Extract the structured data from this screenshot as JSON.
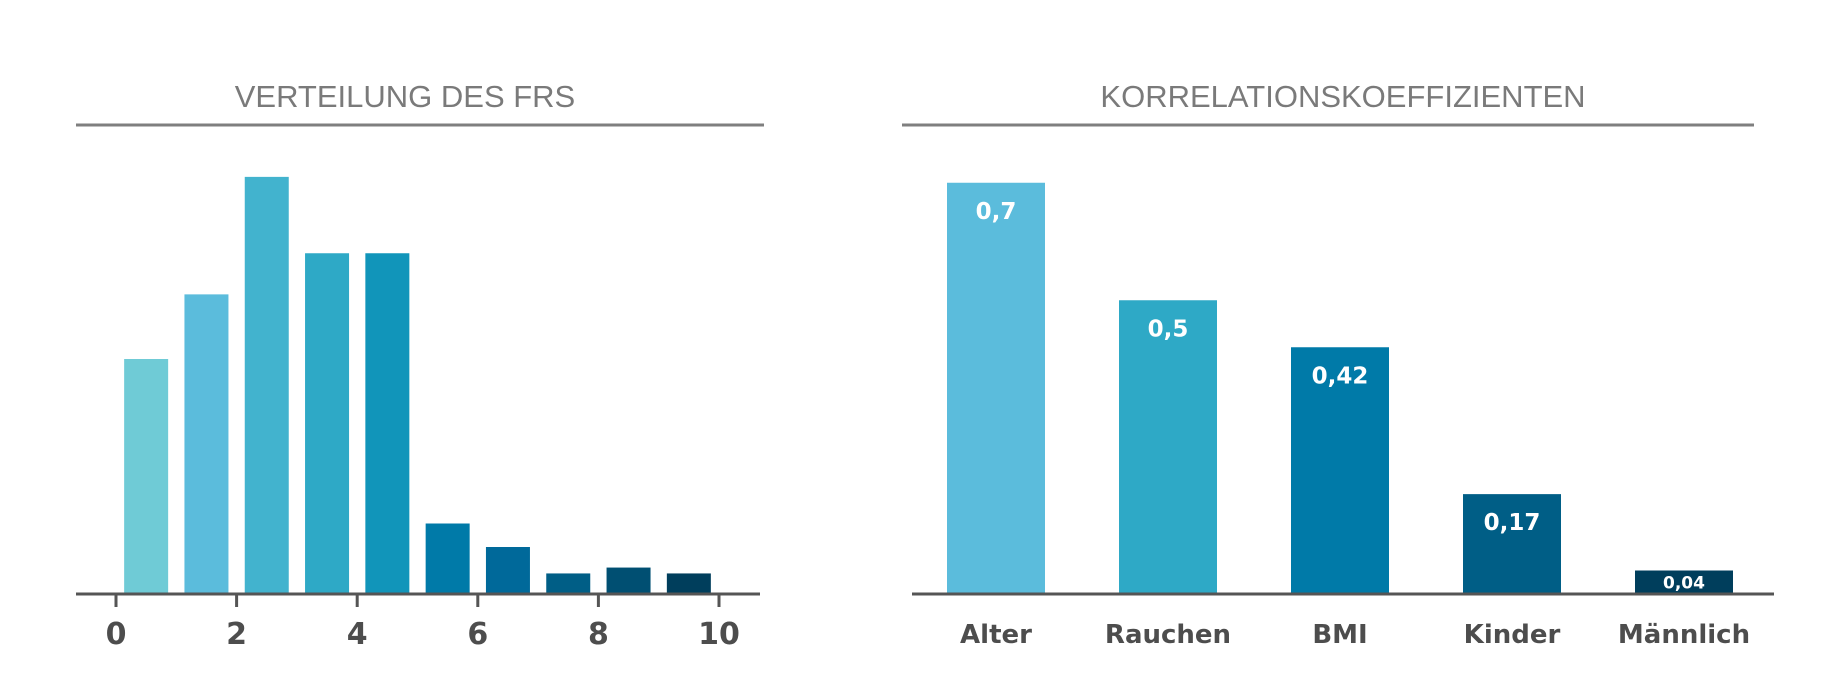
{
  "chart_data": [
    {
      "type": "bar",
      "title": "VERTEILUNG DES FRS",
      "x": [
        0,
        1,
        2,
        3,
        4,
        5,
        6,
        7,
        8,
        9
      ],
      "values": [
        40,
        51,
        71,
        58,
        58,
        12,
        8,
        3.5,
        4.5,
        3.5
      ],
      "xticks": [
        "0",
        "2",
        "4",
        "6",
        "8",
        "10"
      ],
      "colors": [
        "#6fcbd6",
        "#5bbcdc",
        "#42b3ce",
        "#2ea9c6",
        "#1195ba",
        "#007aa8",
        "#00699a",
        "#005e86",
        "#004f72",
        "#003e5c"
      ],
      "ylim": [
        0,
        80
      ],
      "grid": false,
      "legend": "none"
    },
    {
      "type": "bar",
      "title": "KORRELATIONSKOEFFIZIENTEN",
      "categories": [
        "Alter",
        "Rauchen",
        "BMI",
        "Kinder",
        "Männlich"
      ],
      "values": [
        0.7,
        0.5,
        0.42,
        0.17,
        0.04
      ],
      "labels": [
        "0,7",
        "0,5",
        "0,42",
        "0,17",
        "0,04"
      ],
      "colors": [
        "#5bbcdc",
        "#2ea9c6",
        "#007aa8",
        "#005e86",
        "#003e5c"
      ],
      "ylim": [
        0,
        0.8
      ],
      "grid": false,
      "legend": "none"
    }
  ],
  "colors": {
    "title_text": "#7a7a7a",
    "rule": "#7f7f7f",
    "axis": "#555555",
    "tick_text": "#4d4d4d"
  }
}
